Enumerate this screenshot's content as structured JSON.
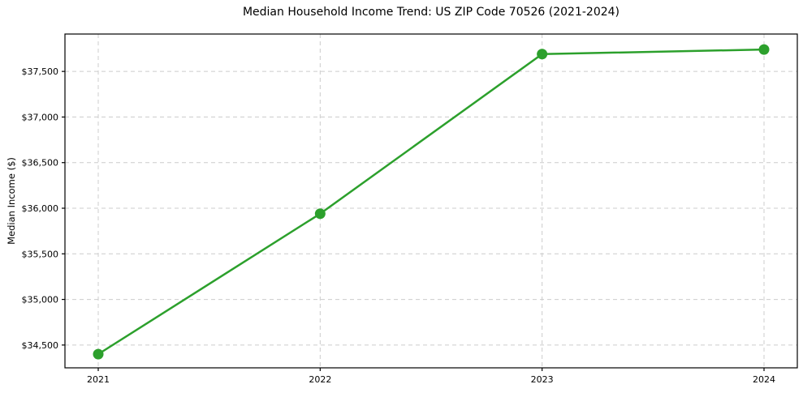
{
  "chart_data": {
    "type": "line",
    "title": "Median Household Income Trend: US ZIP Code 70526 (2021-2024)",
    "xlabel": "",
    "ylabel": "Median Income ($)",
    "x": [
      2021,
      2022,
      2023,
      2024
    ],
    "series": [
      {
        "name": "Median Household Income",
        "values": [
          34400,
          35940,
          37690,
          37740
        ],
        "color": "#2ca02c",
        "line_width": 2.5,
        "marker": "circle",
        "marker_radius": 6.5
      }
    ],
    "xticks": [
      2021,
      2022,
      2023,
      2024
    ],
    "xtick_labels": [
      "2021",
      "2022",
      "2023",
      "2024"
    ],
    "yticks": [
      34500,
      35000,
      35500,
      36000,
      36500,
      37000,
      37500
    ],
    "ytick_labels": [
      "$34,500",
      "$35,000",
      "$35,500",
      "$36,000",
      "$36,500",
      "$37,000",
      "$37,500"
    ],
    "xlim": [
      2020.85,
      2024.15
    ],
    "ylim": [
      34250,
      37910
    ],
    "grid": true,
    "grid_color": "#cccccc",
    "grid_dash": "5,4",
    "axis_color": "#000000",
    "tick_color": "#000000",
    "background": "#ffffff",
    "legend_position": "none"
  }
}
